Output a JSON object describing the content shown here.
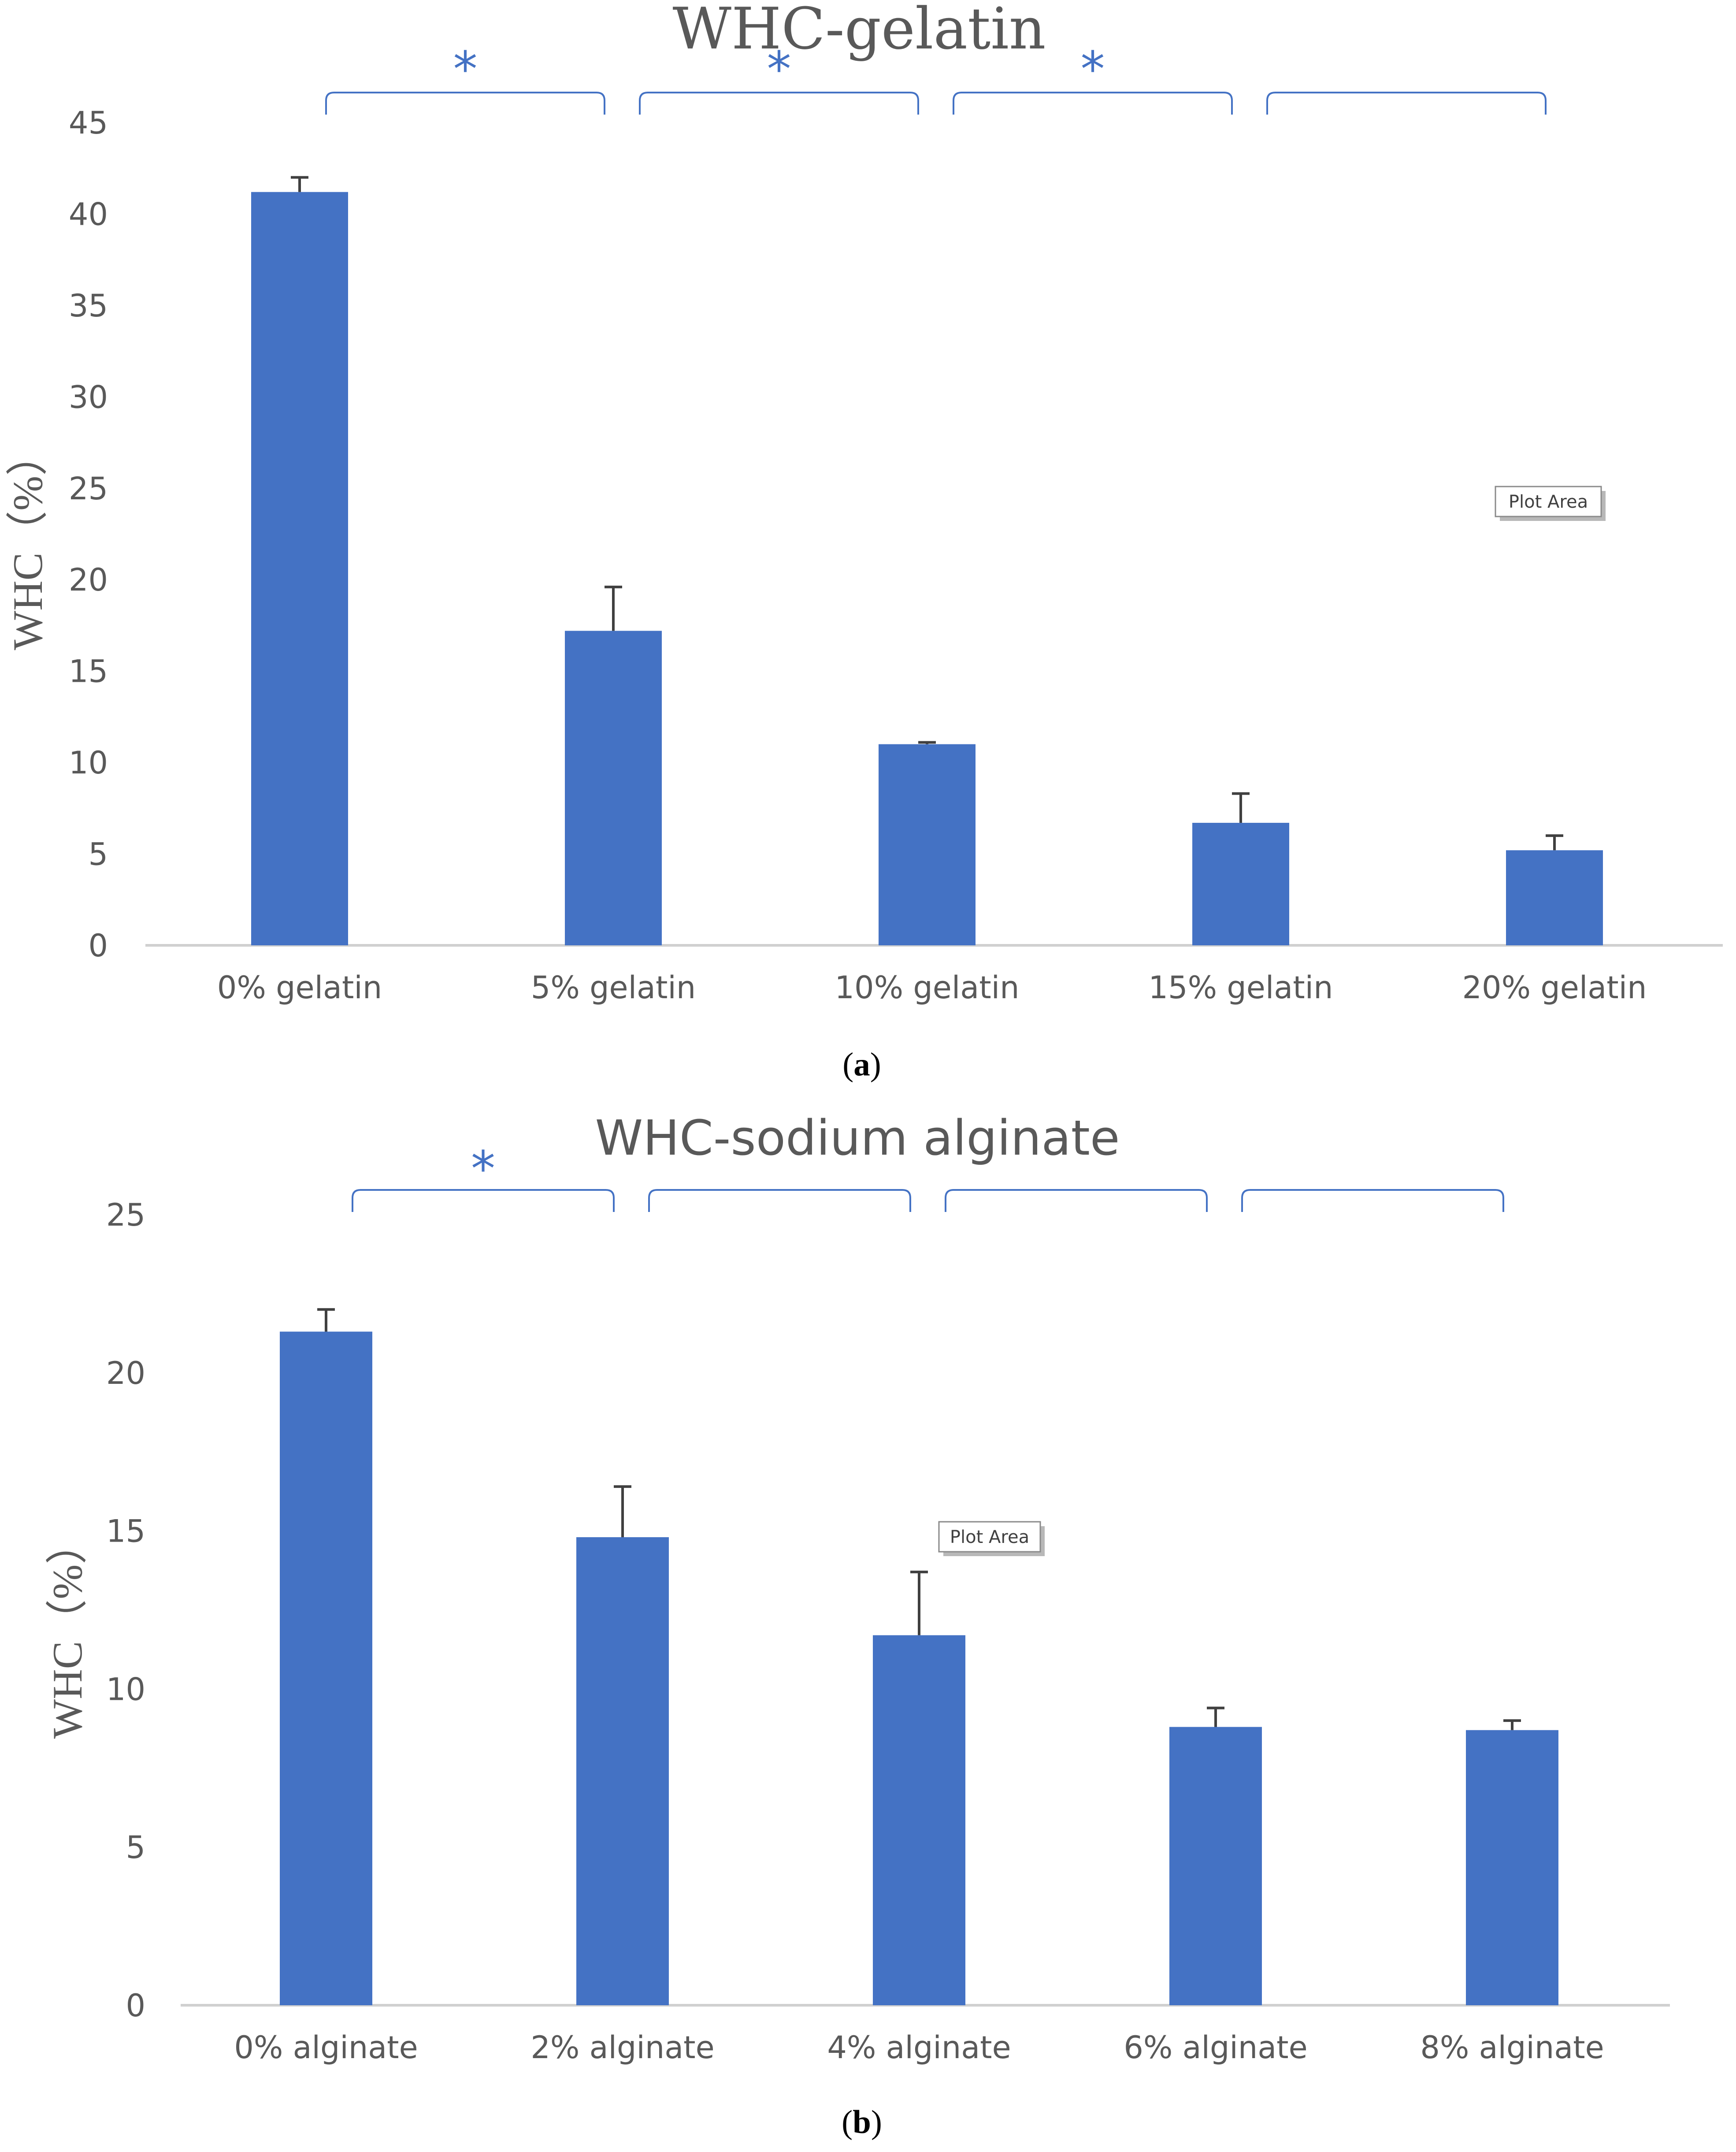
{
  "colors": {
    "bar": "#4472C4",
    "error_bar": "#404040",
    "axis": "#D0D0D0",
    "bracket": "#4472C4",
    "star": "#4472C4",
    "text": "#595959"
  },
  "chart_data": [
    {
      "type": "bar",
      "title": "WHC-gelatin",
      "xlabel": "",
      "ylabel": "WHC（%）",
      "ylim": [
        0,
        45
      ],
      "yticks": [
        0,
        5,
        10,
        15,
        20,
        25,
        30,
        35,
        40,
        45
      ],
      "categories": [
        "0% gelatin",
        "5% gelatin",
        "10% gelatin",
        "15% gelatin",
        "20% gelatin"
      ],
      "values": [
        41.2,
        17.2,
        11.0,
        6.7,
        5.2
      ],
      "errors": [
        0.8,
        2.4,
        0.1,
        1.6,
        0.8
      ],
      "significance": [
        {
          "from": 0,
          "to": 1,
          "label": "*"
        },
        {
          "from": 1,
          "to": 2,
          "label": "*"
        },
        {
          "from": 2,
          "to": 3,
          "label": "*"
        },
        {
          "from": 3,
          "to": 4,
          "label": ""
        }
      ],
      "tooltip": "Plot Area",
      "caption_prefix": "(",
      "caption_letter": "a",
      "caption_suffix": ")"
    },
    {
      "type": "bar",
      "title": "WHC-sodium alginate",
      "xlabel": "",
      "ylabel": "WHC（%）",
      "ylim": [
        0,
        25
      ],
      "yticks": [
        0,
        5,
        10,
        15,
        20,
        25
      ],
      "categories": [
        "0% alginate",
        "2% alginate",
        "4% alginate",
        "6% alginate",
        "8% alginate"
      ],
      "values": [
        21.3,
        14.8,
        11.7,
        8.8,
        8.7
      ],
      "errors": [
        0.7,
        1.6,
        2.0,
        0.6,
        0.3
      ],
      "significance": [
        {
          "from": 0,
          "to": 1,
          "label": "*"
        },
        {
          "from": 1,
          "to": 2,
          "label": ""
        },
        {
          "from": 2,
          "to": 3,
          "label": ""
        },
        {
          "from": 3,
          "to": 4,
          "label": ""
        }
      ],
      "tooltip": "Plot Area",
      "caption_prefix": "(",
      "caption_letter": "b",
      "caption_suffix": ")"
    }
  ]
}
